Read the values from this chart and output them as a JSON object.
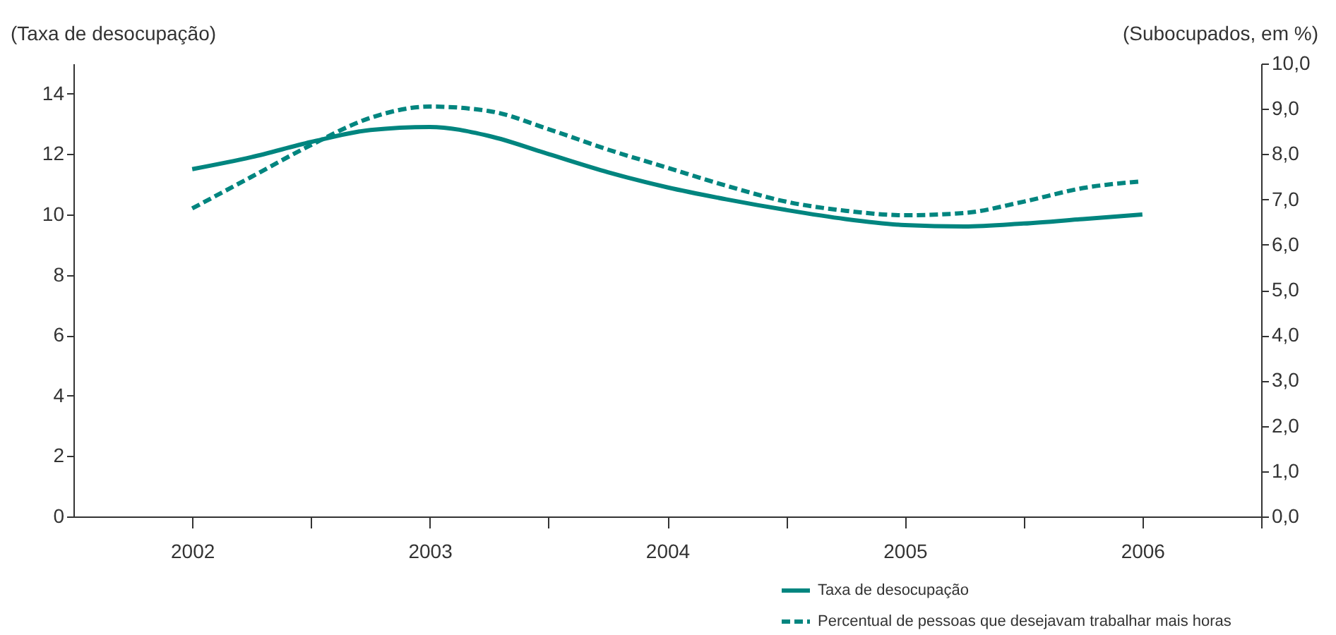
{
  "chart_data": {
    "type": "line",
    "ylabel": "(Taxa de desocupação)",
    "y2label": "(Subocupados, em %)",
    "xlim": [
      2001.5,
      2006.5
    ],
    "xticks": [
      {
        "value": 2002,
        "label": "2002"
      },
      {
        "value": 2002.5,
        "label": null
      },
      {
        "value": 2003,
        "label": "2003"
      },
      {
        "value": 2003.5,
        "label": null
      },
      {
        "value": 2004,
        "label": "2004"
      },
      {
        "value": 2004.5,
        "label": null
      },
      {
        "value": 2005,
        "label": "2005"
      },
      {
        "value": 2005.5,
        "label": null
      },
      {
        "value": 2006,
        "label": "2006"
      },
      {
        "value": 2006.5,
        "label": null
      }
    ],
    "ylim": [
      0,
      15
    ],
    "yticks": [
      0,
      2,
      4,
      6,
      8,
      10,
      12,
      14
    ],
    "y2lim": [
      0,
      10
    ],
    "y2ticks": [
      {
        "value": 0,
        "label": "0,0"
      },
      {
        "value": 1,
        "label": "1,0"
      },
      {
        "value": 2,
        "label": "2,0"
      },
      {
        "value": 3,
        "label": "3,0"
      },
      {
        "value": 4,
        "label": "4,0"
      },
      {
        "value": 5,
        "label": "5,0"
      },
      {
        "value": 6,
        "label": "6,0"
      },
      {
        "value": 7,
        "label": "7,0"
      },
      {
        "value": 8,
        "label": "8,0"
      },
      {
        "value": 9,
        "label": "9,0"
      },
      {
        "value": 10,
        "label": "10,0"
      }
    ],
    "grid": false,
    "legend": "bottom right",
    "series": [
      {
        "name": "Taxa de desocupação",
        "color": "#00857f",
        "line_style": "solid",
        "x": [
          2002,
          2002.25,
          2002.5,
          2002.75,
          2003,
          2003.25,
          2003.5,
          2003.75,
          2004,
          2004.25,
          2004.5,
          2004.75,
          2005,
          2005.25,
          2005.5,
          2005.75,
          2006
        ],
        "values": [
          11.5,
          11.9,
          12.4,
          12.8,
          12.9,
          12.6,
          12.0,
          11.4,
          10.9,
          10.5,
          10.15,
          9.85,
          9.65,
          9.6,
          9.7,
          9.85,
          10.0
        ]
      },
      {
        "name": "Percentual de pessoas que desejavam trabalhar mais horas",
        "color": "#00857f",
        "line_style": "dashed",
        "axis": "y2",
        "x": [
          2002,
          2002.25,
          2002.5,
          2002.75,
          2003,
          2003.25,
          2003.5,
          2003.75,
          2004,
          2004.25,
          2004.5,
          2004.75,
          2005,
          2005.25,
          2005.5,
          2005.75,
          2006
        ],
        "values": [
          6.8,
          7.5,
          8.2,
          8.8,
          9.05,
          8.95,
          8.55,
          8.1,
          7.7,
          7.3,
          6.95,
          6.75,
          6.65,
          6.7,
          6.95,
          7.25,
          7.4
        ]
      }
    ]
  }
}
